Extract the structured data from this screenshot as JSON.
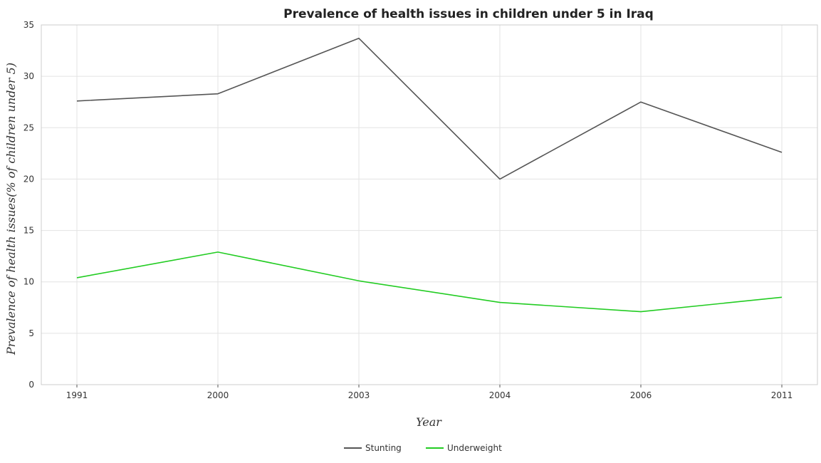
{
  "chart_data": {
    "type": "line",
    "title": "Prevalence of health issues in children under 5 in Iraq",
    "xlabel": "Year",
    "ylabel": "Prevalence of health issues(% of children under 5)",
    "categories": [
      "1991",
      "2000",
      "2003",
      "2004",
      "2006",
      "2011"
    ],
    "ylim": [
      0,
      35
    ],
    "yticks": [
      0,
      5,
      10,
      15,
      20,
      25,
      30,
      35
    ],
    "grid": true,
    "legend_position": "bottom-center",
    "series": [
      {
        "name": "Stunting",
        "color": "#555555",
        "values": [
          27.6,
          28.3,
          33.7,
          20.0,
          27.5,
          22.6
        ]
      },
      {
        "name": "Underweight",
        "color": "#22cc22",
        "values": [
          10.4,
          12.9,
          10.1,
          8.0,
          7.1,
          8.5
        ]
      }
    ]
  }
}
